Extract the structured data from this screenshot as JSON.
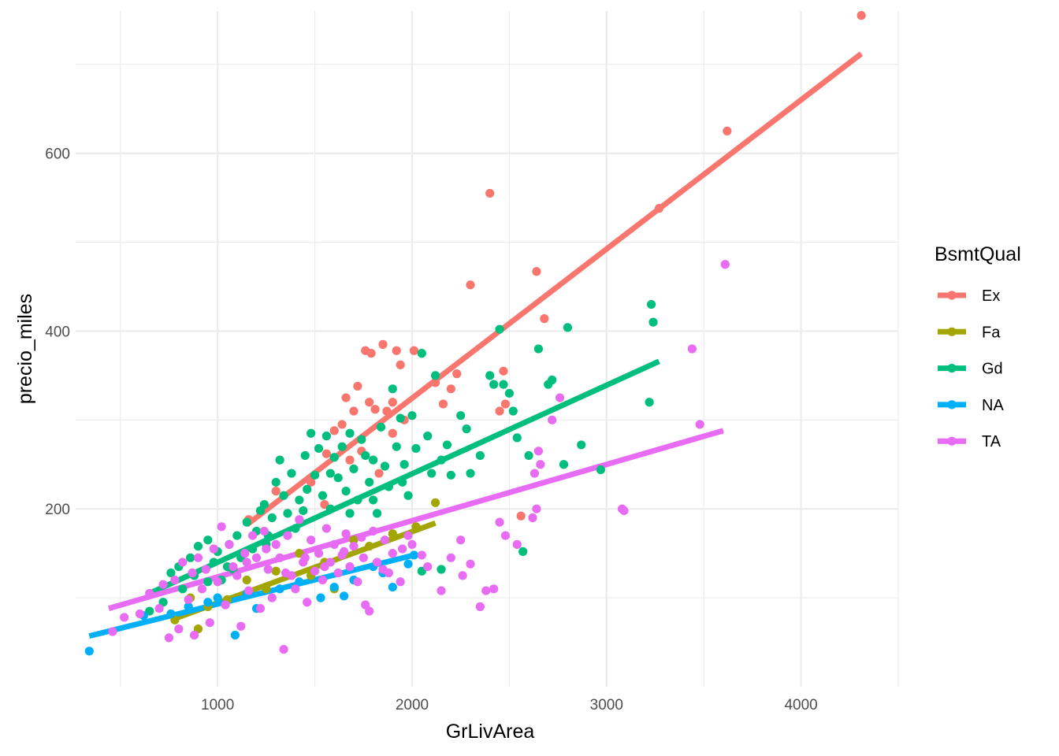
{
  "chart_data": {
    "type": "scatter",
    "title": "",
    "xlabel": "GrLivArea",
    "ylabel": "precio_miles",
    "xlim": [
      270,
      4500
    ],
    "ylim": [
      0,
      760
    ],
    "x_ticks": [
      1000,
      2000,
      3000,
      4000
    ],
    "x_tick_labels": [
      "1000",
      "2000",
      "3000",
      "4000"
    ],
    "y_ticks": [
      200,
      400,
      600
    ],
    "y_tick_labels": [
      "200",
      "400",
      "600"
    ],
    "grid": true,
    "legend": {
      "title": "BsmtQual",
      "position": "right"
    },
    "trend_lines": "linear fit per series",
    "series": [
      {
        "name": "Ex",
        "color": "#F8766D",
        "fit": {
          "x": [
            1150,
            4310
          ],
          "y": [
            182,
            712
          ]
        },
        "points": [
          [
            1160,
            188
          ],
          [
            1300,
            220
          ],
          [
            1480,
            230
          ],
          [
            1560,
            262
          ],
          [
            1600,
            288
          ],
          [
            1640,
            295
          ],
          [
            1660,
            325
          ],
          [
            1700,
            310
          ],
          [
            1720,
            338
          ],
          [
            1740,
            265
          ],
          [
            1760,
            378
          ],
          [
            1780,
            320
          ],
          [
            1790,
            375
          ],
          [
            1810,
            312
          ],
          [
            1830,
            240
          ],
          [
            1850,
            385
          ],
          [
            1870,
            310
          ],
          [
            1900,
            320
          ],
          [
            1920,
            378
          ],
          [
            1940,
            362
          ],
          [
            1960,
            300
          ],
          [
            2010,
            378
          ],
          [
            2120,
            342
          ],
          [
            2160,
            318
          ],
          [
            2200,
            335
          ],
          [
            2230,
            352
          ],
          [
            2300,
            452
          ],
          [
            2400,
            555
          ],
          [
            2450,
            310
          ],
          [
            2470,
            355
          ],
          [
            2480,
            318
          ],
          [
            2560,
            192
          ],
          [
            2640,
            467
          ],
          [
            2680,
            414
          ],
          [
            3270,
            538
          ],
          [
            3620,
            625
          ],
          [
            4310,
            755
          ],
          [
            1550,
            205
          ],
          [
            1680,
            255
          ],
          [
            1900,
            285
          ]
        ]
      },
      {
        "name": "Fa",
        "color": "#A3A500",
        "fit": {
          "x": [
            760,
            2120
          ],
          "y": [
            75,
            184
          ]
        },
        "points": [
          [
            780,
            75
          ],
          [
            860,
            100
          ],
          [
            900,
            65
          ],
          [
            950,
            90
          ],
          [
            1050,
            98
          ],
          [
            1150,
            120
          ],
          [
            1250,
            110
          ],
          [
            1300,
            130
          ],
          [
            1420,
            150
          ],
          [
            1480,
            125
          ],
          [
            1550,
            140
          ],
          [
            1600,
            110
          ],
          [
            1700,
            165
          ],
          [
            1780,
            158
          ],
          [
            1900,
            172
          ],
          [
            2020,
            180
          ],
          [
            2120,
            207
          ]
        ]
      },
      {
        "name": "Gd",
        "color": "#00BF7D",
        "fit": {
          "x": [
            650,
            3270
          ],
          "y": [
            105,
            366
          ]
        },
        "points": [
          [
            650,
            85
          ],
          [
            720,
            95
          ],
          [
            760,
            128
          ],
          [
            800,
            135
          ],
          [
            820,
            110
          ],
          [
            860,
            145
          ],
          [
            880,
            125
          ],
          [
            900,
            158
          ],
          [
            950,
            165
          ],
          [
            980,
            140
          ],
          [
            1000,
            152
          ],
          [
            1020,
            120
          ],
          [
            1060,
            160
          ],
          [
            1080,
            132
          ],
          [
            1100,
            170
          ],
          [
            1120,
            145
          ],
          [
            1150,
            185
          ],
          [
            1180,
            155
          ],
          [
            1200,
            175
          ],
          [
            1220,
            198
          ],
          [
            1240,
            205
          ],
          [
            1260,
            170
          ],
          [
            1280,
            190
          ],
          [
            1300,
            230
          ],
          [
            1320,
            255
          ],
          [
            1340,
            215
          ],
          [
            1360,
            195
          ],
          [
            1380,
            240
          ],
          [
            1400,
            178
          ],
          [
            1420,
            210
          ],
          [
            1440,
            198
          ],
          [
            1460,
            222
          ],
          [
            1480,
            285
          ],
          [
            1500,
            238
          ],
          [
            1520,
            268
          ],
          [
            1540,
            215
          ],
          [
            1560,
            282
          ],
          [
            1580,
            200
          ],
          [
            1600,
            258
          ],
          [
            1620,
            235
          ],
          [
            1640,
            270
          ],
          [
            1660,
            220
          ],
          [
            1680,
            285
          ],
          [
            1700,
            245
          ],
          [
            1720,
            210
          ],
          [
            1740,
            278
          ],
          [
            1760,
            260
          ],
          [
            1780,
            230
          ],
          [
            1800,
            255
          ],
          [
            1820,
            195
          ],
          [
            1840,
            292
          ],
          [
            1860,
            248
          ],
          [
            1880,
            225
          ],
          [
            1900,
            335
          ],
          [
            1920,
            270
          ],
          [
            1940,
            302
          ],
          [
            1960,
            250
          ],
          [
            1980,
            215
          ],
          [
            2000,
            305
          ],
          [
            2020,
            268
          ],
          [
            2050,
            375
          ],
          [
            2080,
            282
          ],
          [
            2100,
            240
          ],
          [
            2120,
            350
          ],
          [
            2150,
            255
          ],
          [
            2180,
            272
          ],
          [
            2200,
            238
          ],
          [
            2250,
            305
          ],
          [
            2280,
            290
          ],
          [
            2300,
            240
          ],
          [
            2350,
            260
          ],
          [
            2400,
            350
          ],
          [
            2420,
            340
          ],
          [
            2450,
            402
          ],
          [
            2470,
            340
          ],
          [
            2500,
            330
          ],
          [
            2520,
            310
          ],
          [
            2540,
            280
          ],
          [
            2570,
            152
          ],
          [
            2600,
            260
          ],
          [
            2650,
            380
          ],
          [
            2700,
            340
          ],
          [
            2720,
            345
          ],
          [
            2780,
            250
          ],
          [
            2800,
            404
          ],
          [
            2870,
            272
          ],
          [
            2970,
            244
          ],
          [
            3220,
            320
          ],
          [
            3230,
            430
          ],
          [
            3240,
            410
          ],
          [
            1450,
            260
          ],
          [
            1580,
            240
          ],
          [
            1680,
            195
          ],
          [
            1800,
            210
          ],
          [
            1950,
            230
          ],
          [
            2050,
            130
          ],
          [
            2150,
            132
          ],
          [
            1250,
            160
          ],
          [
            1050,
            135
          ],
          [
            950,
            118
          ]
        ]
      },
      {
        "name": "NA",
        "color": "#00B0F6",
        "fit": {
          "x": [
            340,
            2010
          ],
          "y": [
            57,
            148
          ]
        },
        "points": [
          [
            340,
            40
          ],
          [
            620,
            80
          ],
          [
            760,
            82
          ],
          [
            850,
            90
          ],
          [
            950,
            95
          ],
          [
            1000,
            100
          ],
          [
            1090,
            58
          ],
          [
            1150,
            105
          ],
          [
            1200,
            88
          ],
          [
            1320,
            110
          ],
          [
            1420,
            118
          ],
          [
            1530,
            100
          ],
          [
            1600,
            112
          ],
          [
            1650,
            102
          ],
          [
            1700,
            120
          ],
          [
            1800,
            135
          ],
          [
            1850,
            128
          ],
          [
            1900,
            112
          ],
          [
            1980,
            138
          ],
          [
            2010,
            148
          ]
        ]
      },
      {
        "name": "TA",
        "color": "#E76BF3",
        "fit": {
          "x": [
            440,
            3600
          ],
          "y": [
            88,
            288
          ]
        },
        "points": [
          [
            460,
            62
          ],
          [
            520,
            78
          ],
          [
            600,
            82
          ],
          [
            650,
            105
          ],
          [
            700,
            88
          ],
          [
            720,
            115
          ],
          [
            750,
            55
          ],
          [
            780,
            120
          ],
          [
            800,
            65
          ],
          [
            820,
            140
          ],
          [
            850,
            98
          ],
          [
            870,
            128
          ],
          [
            880,
            58
          ],
          [
            900,
            145
          ],
          [
            920,
            110
          ],
          [
            940,
            132
          ],
          [
            960,
            72
          ],
          [
            980,
            155
          ],
          [
            1000,
            118
          ],
          [
            1020,
            180
          ],
          [
            1040,
            92
          ],
          [
            1060,
            160
          ],
          [
            1080,
            135
          ],
          [
            1100,
            125
          ],
          [
            1120,
            68
          ],
          [
            1140,
            150
          ],
          [
            1160,
            108
          ],
          [
            1180,
            170
          ],
          [
            1200,
            145
          ],
          [
            1220,
            88
          ],
          [
            1240,
            175
          ],
          [
            1260,
            132
          ],
          [
            1280,
            100
          ],
          [
            1300,
            160
          ],
          [
            1320,
            145
          ],
          [
            1340,
            42
          ],
          [
            1360,
            170
          ],
          [
            1380,
            125
          ],
          [
            1400,
            110
          ],
          [
            1420,
            188
          ],
          [
            1440,
            140
          ],
          [
            1460,
            95
          ],
          [
            1480,
            165
          ],
          [
            1500,
            130
          ],
          [
            1520,
            150
          ],
          [
            1540,
            120
          ],
          [
            1560,
            178
          ],
          [
            1580,
            140
          ],
          [
            1600,
            160
          ],
          [
            1620,
            128
          ],
          [
            1640,
            148
          ],
          [
            1660,
            172
          ],
          [
            1680,
            135
          ],
          [
            1700,
            158
          ],
          [
            1720,
            118
          ],
          [
            1740,
            168
          ],
          [
            1760,
            92
          ],
          [
            1780,
            85
          ],
          [
            1800,
            175
          ],
          [
            1820,
            140
          ],
          [
            1860,
            165
          ],
          [
            1880,
            128
          ],
          [
            1900,
            150
          ],
          [
            1940,
            118
          ],
          [
            1980,
            170
          ],
          [
            2000,
            160
          ],
          [
            2080,
            135
          ],
          [
            2150,
            108
          ],
          [
            2200,
            145
          ],
          [
            2260,
            125
          ],
          [
            2300,
            138
          ],
          [
            2350,
            90
          ],
          [
            2380,
            108
          ],
          [
            2420,
            110
          ],
          [
            2480,
            170
          ],
          [
            2540,
            160
          ],
          [
            2620,
            190
          ],
          [
            2630,
            240
          ],
          [
            2640,
            200
          ],
          [
            2650,
            265
          ],
          [
            2660,
            250
          ],
          [
            2720,
            300
          ],
          [
            2760,
            325
          ],
          [
            3080,
            200
          ],
          [
            3090,
            198
          ],
          [
            3440,
            380
          ],
          [
            3480,
            295
          ],
          [
            3610,
            475
          ],
          [
            1150,
            140
          ],
          [
            1250,
            155
          ],
          [
            1350,
            128
          ],
          [
            1450,
            145
          ],
          [
            1550,
            135
          ],
          [
            1650,
            152
          ],
          [
            1750,
            145
          ],
          [
            1850,
            132
          ],
          [
            1950,
            155
          ],
          [
            2050,
            148
          ],
          [
            2250,
            165
          ],
          [
            2450,
            185
          ]
        ]
      }
    ]
  }
}
